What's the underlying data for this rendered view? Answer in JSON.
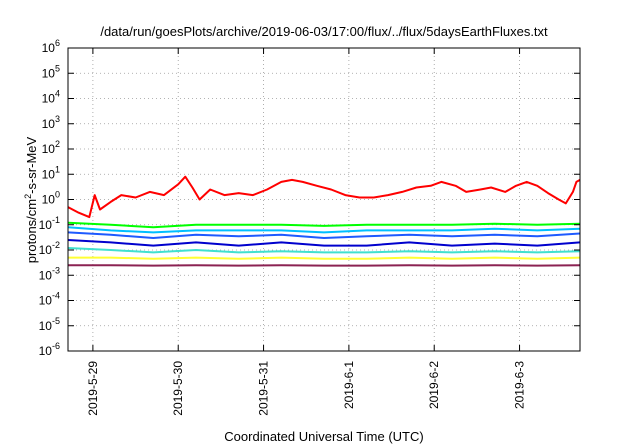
{
  "chart_data": {
    "type": "line",
    "title": "/data/run/goesPlots/archive/2019-06-03/17:00/flux/../flux/5daysEarthFluxes.txt",
    "xlabel": "Coordinated Universal Time (UTC)",
    "ylabel": {
      "prefix": "protons/cm",
      "sup": "2",
      "suffix": "-s-sr-MeV"
    },
    "y_scale": "log",
    "ylim": [
      1e-06,
      1000000.0
    ],
    "y_ticks": [
      {
        "exp": -6,
        "base": "10",
        "sup": "-6"
      },
      {
        "exp": -5,
        "base": "10",
        "sup": "-5"
      },
      {
        "exp": -4,
        "base": "10",
        "sup": "-4"
      },
      {
        "exp": -3,
        "base": "10",
        "sup": "-3"
      },
      {
        "exp": -2,
        "base": "10",
        "sup": "-2"
      },
      {
        "exp": -1,
        "base": "10",
        "sup": "-1"
      },
      {
        "exp": 0,
        "base": "10",
        "sup": "0"
      },
      {
        "exp": 1,
        "base": "10",
        "sup": "1"
      },
      {
        "exp": 2,
        "base": "10",
        "sup": "2"
      },
      {
        "exp": 3,
        "base": "10",
        "sup": "3"
      },
      {
        "exp": 4,
        "base": "10",
        "sup": "4"
      },
      {
        "exp": 5,
        "base": "10",
        "sup": "5"
      },
      {
        "exp": 6,
        "base": "10",
        "sup": "6"
      }
    ],
    "x_range_days": [
      "2019-05-28T17:00",
      "2019-06-03T17:00"
    ],
    "x_ticks": [
      "2019-5-29",
      "2019-5-30",
      "2019-5-31",
      "2019-6-1",
      "2019-6-2",
      "2019-6-3"
    ],
    "grid": true,
    "series": [
      {
        "color": "#ff0000",
        "points": [
          [
            "2019-05-28T17:00",
            0.5
          ],
          [
            "2019-05-28T20:00",
            0.3
          ],
          [
            "2019-05-28T23:00",
            0.2
          ],
          [
            "2019-05-29T00:30",
            1.5
          ],
          [
            "2019-05-29T02:00",
            0.4
          ],
          [
            "2019-05-29T05:00",
            0.8
          ],
          [
            "2019-05-29T08:00",
            1.5
          ],
          [
            "2019-05-29T12:00",
            1.2
          ],
          [
            "2019-05-29T16:00",
            2.0
          ],
          [
            "2019-05-29T20:00",
            1.5
          ],
          [
            "2019-05-30T00:00",
            4.0
          ],
          [
            "2019-05-30T02:00",
            8.0
          ],
          [
            "2019-05-30T04:00",
            3.0
          ],
          [
            "2019-05-30T06:00",
            1.0
          ],
          [
            "2019-05-30T09:00",
            2.5
          ],
          [
            "2019-05-30T13:00",
            1.5
          ],
          [
            "2019-05-30T17:00",
            1.8
          ],
          [
            "2019-05-30T21:00",
            1.5
          ],
          [
            "2019-05-31T01:00",
            2.5
          ],
          [
            "2019-05-31T05:00",
            5.0
          ],
          [
            "2019-05-31T08:00",
            6.0
          ],
          [
            "2019-05-31T11:00",
            5.0
          ],
          [
            "2019-05-31T15:00",
            3.5
          ],
          [
            "2019-05-31T19:00",
            2.5
          ],
          [
            "2019-05-31T23:00",
            1.5
          ],
          [
            "2019-06-01T03:00",
            1.2
          ],
          [
            "2019-06-01T07:00",
            1.2
          ],
          [
            "2019-06-01T11:00",
            1.5
          ],
          [
            "2019-06-01T15:00",
            2.0
          ],
          [
            "2019-06-01T19:00",
            3.0
          ],
          [
            "2019-06-01T23:00",
            3.5
          ],
          [
            "2019-06-02T02:00",
            5.0
          ],
          [
            "2019-06-02T06:00",
            3.5
          ],
          [
            "2019-06-02T09:00",
            2.0
          ],
          [
            "2019-06-02T13:00",
            2.5
          ],
          [
            "2019-06-02T16:00",
            3.0
          ],
          [
            "2019-06-02T20:00",
            2.0
          ],
          [
            "2019-06-02T23:00",
            3.5
          ],
          [
            "2019-06-03T02:00",
            5.0
          ],
          [
            "2019-06-03T05:00",
            3.5
          ],
          [
            "2019-06-03T08:00",
            1.8
          ],
          [
            "2019-06-03T11:00",
            1.0
          ],
          [
            "2019-06-03T13:00",
            0.7
          ],
          [
            "2019-06-03T15:00",
            2.0
          ],
          [
            "2019-06-03T16:00",
            5.0
          ],
          [
            "2019-06-03T17:00",
            6.0
          ]
        ]
      },
      {
        "color": "#00ff00",
        "points": [
          [
            "2019-05-28T17:00",
            0.12
          ],
          [
            "2019-05-29T05:00",
            0.1
          ],
          [
            "2019-05-29T17:00",
            0.08
          ],
          [
            "2019-05-30T05:00",
            0.1
          ],
          [
            "2019-05-30T17:00",
            0.1
          ],
          [
            "2019-05-31T05:00",
            0.1
          ],
          [
            "2019-05-31T17:00",
            0.09
          ],
          [
            "2019-06-01T05:00",
            0.1
          ],
          [
            "2019-06-01T17:00",
            0.1
          ],
          [
            "2019-06-02T05:00",
            0.1
          ],
          [
            "2019-06-02T17:00",
            0.11
          ],
          [
            "2019-06-03T05:00",
            0.1
          ],
          [
            "2019-06-03T17:00",
            0.11
          ]
        ]
      },
      {
        "color": "#00bfff",
        "points": [
          [
            "2019-05-28T17:00",
            0.08
          ],
          [
            "2019-05-29T05:00",
            0.06
          ],
          [
            "2019-05-29T17:00",
            0.05
          ],
          [
            "2019-05-30T05:00",
            0.06
          ],
          [
            "2019-05-30T17:00",
            0.06
          ],
          [
            "2019-05-31T05:00",
            0.06
          ],
          [
            "2019-05-31T17:00",
            0.05
          ],
          [
            "2019-06-01T05:00",
            0.06
          ],
          [
            "2019-06-01T17:00",
            0.06
          ],
          [
            "2019-06-02T05:00",
            0.06
          ],
          [
            "2019-06-02T17:00",
            0.07
          ],
          [
            "2019-06-03T05:00",
            0.06
          ],
          [
            "2019-06-03T17:00",
            0.07
          ]
        ]
      },
      {
        "color": "#1e5aff",
        "points": [
          [
            "2019-05-28T17:00",
            0.05
          ],
          [
            "2019-05-29T05:00",
            0.04
          ],
          [
            "2019-05-29T17:00",
            0.03
          ],
          [
            "2019-05-30T05:00",
            0.04
          ],
          [
            "2019-05-30T17:00",
            0.035
          ],
          [
            "2019-05-31T05:00",
            0.04
          ],
          [
            "2019-05-31T17:00",
            0.03
          ],
          [
            "2019-06-01T05:00",
            0.035
          ],
          [
            "2019-06-01T17:00",
            0.04
          ],
          [
            "2019-06-02T05:00",
            0.035
          ],
          [
            "2019-06-02T17:00",
            0.04
          ],
          [
            "2019-06-03T05:00",
            0.035
          ],
          [
            "2019-06-03T17:00",
            0.045
          ]
        ]
      },
      {
        "color": "#0000cd",
        "points": [
          [
            "2019-05-28T17:00",
            0.025
          ],
          [
            "2019-05-29T05:00",
            0.02
          ],
          [
            "2019-05-29T17:00",
            0.015
          ],
          [
            "2019-05-30T05:00",
            0.02
          ],
          [
            "2019-05-30T17:00",
            0.015
          ],
          [
            "2019-05-31T05:00",
            0.02
          ],
          [
            "2019-05-31T17:00",
            0.015
          ],
          [
            "2019-06-01T05:00",
            0.015
          ],
          [
            "2019-06-01T17:00",
            0.02
          ],
          [
            "2019-06-02T05:00",
            0.015
          ],
          [
            "2019-06-02T17:00",
            0.018
          ],
          [
            "2019-06-03T05:00",
            0.015
          ],
          [
            "2019-06-03T17:00",
            0.02
          ]
        ]
      },
      {
        "color": "#40e0d0",
        "points": [
          [
            "2019-05-28T17:00",
            0.012
          ],
          [
            "2019-05-29T05:00",
            0.01
          ],
          [
            "2019-05-29T17:00",
            0.008
          ],
          [
            "2019-05-30T05:00",
            0.01
          ],
          [
            "2019-05-30T17:00",
            0.008
          ],
          [
            "2019-05-31T05:00",
            0.009
          ],
          [
            "2019-05-31T17:00",
            0.008
          ],
          [
            "2019-06-01T05:00",
            0.008
          ],
          [
            "2019-06-01T17:00",
            0.009
          ],
          [
            "2019-06-02T05:00",
            0.008
          ],
          [
            "2019-06-02T17:00",
            0.009
          ],
          [
            "2019-06-03T05:00",
            0.008
          ],
          [
            "2019-06-03T17:00",
            0.009
          ]
        ]
      },
      {
        "color": "#ffff33",
        "points": [
          [
            "2019-05-28T17:00",
            0.005
          ],
          [
            "2019-05-29T05:00",
            0.005
          ],
          [
            "2019-05-29T17:00",
            0.0045
          ],
          [
            "2019-05-30T05:00",
            0.005
          ],
          [
            "2019-05-30T17:00",
            0.0045
          ],
          [
            "2019-05-31T05:00",
            0.005
          ],
          [
            "2019-05-31T17:00",
            0.0045
          ],
          [
            "2019-06-01T05:00",
            0.0045
          ],
          [
            "2019-06-01T17:00",
            0.005
          ],
          [
            "2019-06-02T05:00",
            0.0045
          ],
          [
            "2019-06-02T17:00",
            0.005
          ],
          [
            "2019-06-03T05:00",
            0.0045
          ],
          [
            "2019-06-03T17:00",
            0.005
          ]
        ]
      },
      {
        "color": "#8b2252",
        "points": [
          [
            "2019-05-28T17:00",
            0.0025
          ],
          [
            "2019-05-29T05:00",
            0.0025
          ],
          [
            "2019-05-29T17:00",
            0.0024
          ],
          [
            "2019-05-30T05:00",
            0.0025
          ],
          [
            "2019-05-30T17:00",
            0.0024
          ],
          [
            "2019-05-31T05:00",
            0.0025
          ],
          [
            "2019-05-31T17:00",
            0.0024
          ],
          [
            "2019-06-01T05:00",
            0.0024
          ],
          [
            "2019-06-01T17:00",
            0.0025
          ],
          [
            "2019-06-02T05:00",
            0.0024
          ],
          [
            "2019-06-02T17:00",
            0.0025
          ],
          [
            "2019-06-03T05:00",
            0.0024
          ],
          [
            "2019-06-03T17:00",
            0.0025
          ]
        ]
      }
    ]
  }
}
